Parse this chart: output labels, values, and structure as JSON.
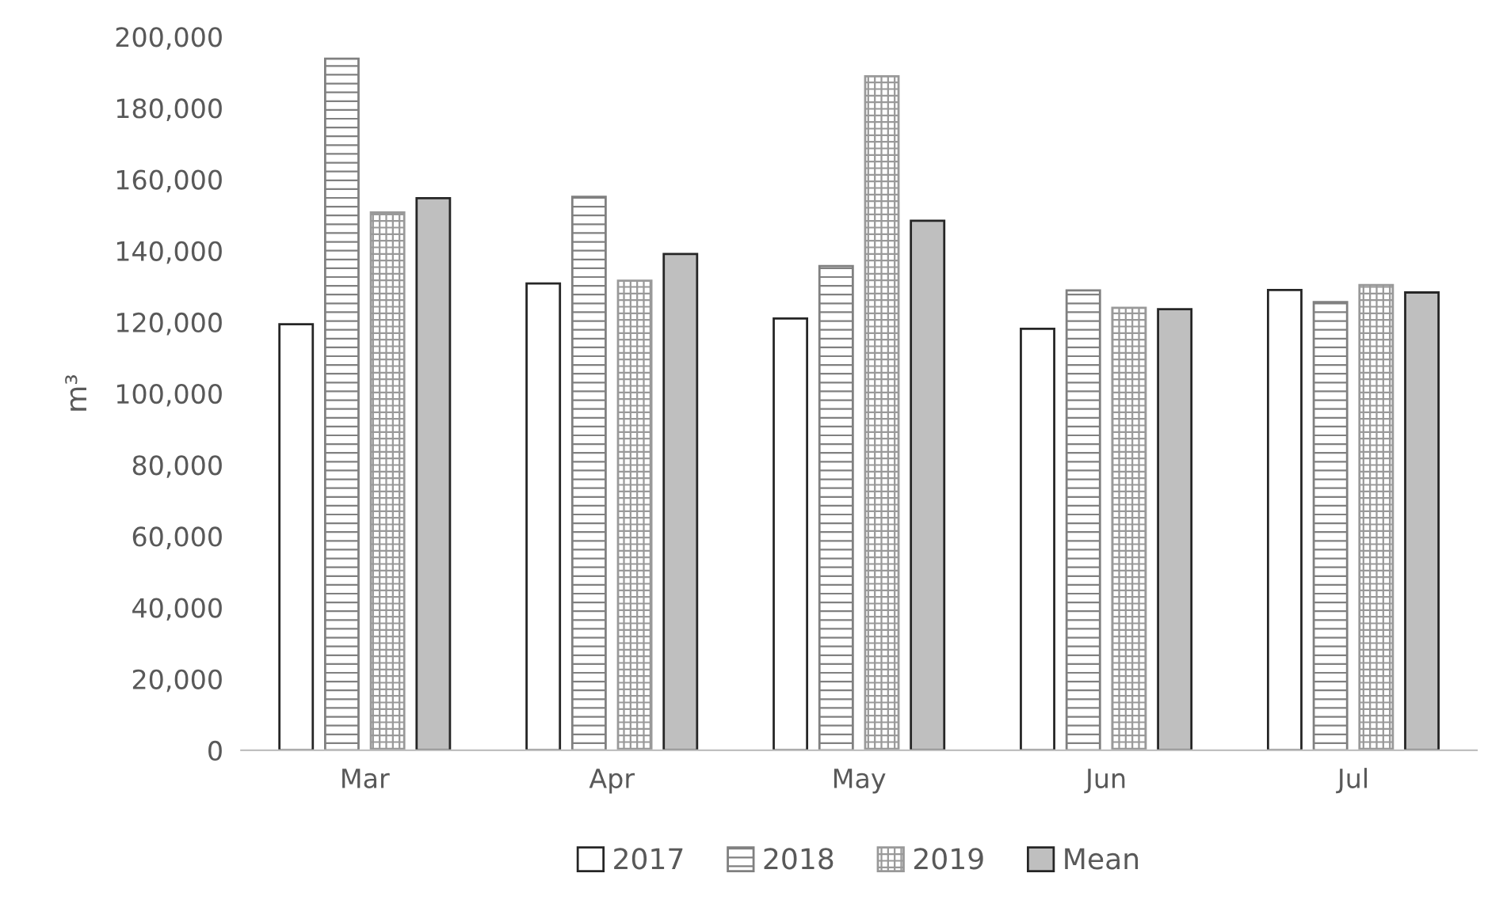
{
  "chart_data": {
    "type": "bar",
    "ylabel": "m³",
    "categories": [
      "Mar",
      "Apr",
      "May",
      "Jun",
      "Jul"
    ],
    "series": [
      {
        "name": "2017",
        "color": "#ffffff",
        "values": [
          119400,
          130800,
          121000,
          118100,
          129000
        ]
      },
      {
        "name": "2018",
        "color": "#808080",
        "values": [
          193800,
          155100,
          135700,
          128900,
          125600
        ]
      },
      {
        "name": "2019",
        "color": "#999999",
        "values": [
          150700,
          131600,
          188900,
          124000,
          130400
        ]
      },
      {
        "name": "Mean",
        "color": "#bfbfbf",
        "values": [
          154700,
          139100,
          148400,
          123600,
          128300
        ]
      }
    ],
    "ylim": [
      0,
      200000
    ],
    "yticks": [
      {
        "value": 0,
        "label": "0"
      },
      {
        "value": 20000,
        "label": "20,000"
      },
      {
        "value": 40000,
        "label": "40,000"
      },
      {
        "value": 60000,
        "label": "60,000"
      },
      {
        "value": 80000,
        "label": "80,000"
      },
      {
        "value": 100000,
        "label": "100,000"
      },
      {
        "value": 120000,
        "label": "120,000"
      },
      {
        "value": 140000,
        "label": "140,000"
      },
      {
        "value": 160000,
        "label": "160,000"
      },
      {
        "value": 180000,
        "label": "180,000"
      },
      {
        "value": 200000,
        "label": "200,000"
      }
    ],
    "grid": false,
    "legend": "bottom"
  }
}
